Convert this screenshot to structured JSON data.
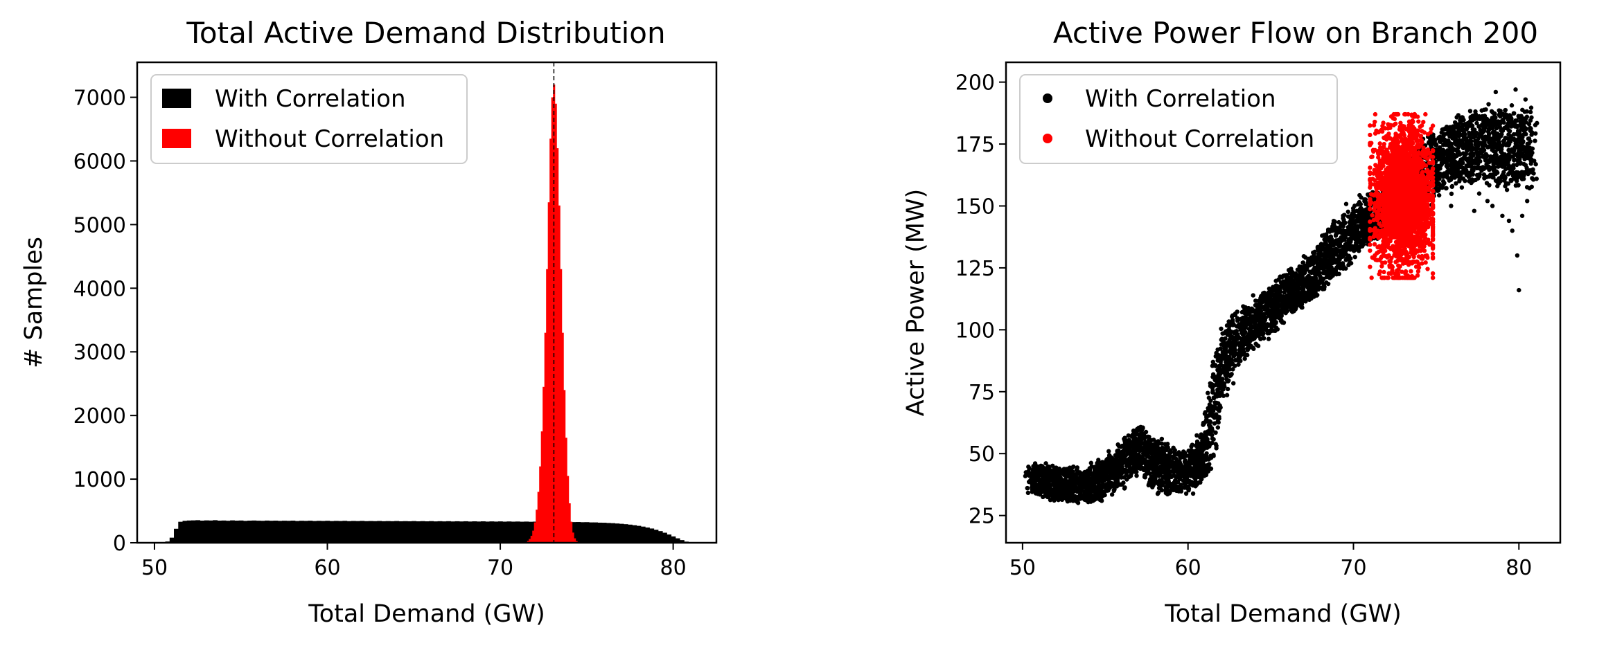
{
  "figure": {
    "colors": {
      "correlated": "#000000",
      "uncorrelated": "#ff0000",
      "reference_line": "#000000"
    }
  },
  "chart_data": [
    {
      "type": "histogram",
      "title": "Total Active Demand Distribution",
      "xlabel": "Total Demand (GW)",
      "ylabel": "# Samples",
      "xlim": [
        49,
        82.5
      ],
      "ylim": [
        0,
        7550
      ],
      "xticks": [
        50,
        60,
        70,
        80
      ],
      "yticks": [
        0,
        1000,
        2000,
        3000,
        4000,
        5000,
        6000,
        7000
      ],
      "reference_line_x": 73.1,
      "legend": {
        "placement": "upper-left",
        "entries": [
          "With Correlation",
          "Without Correlation"
        ]
      },
      "series": [
        {
          "name": "With Correlation",
          "color": "#000000",
          "bin_width": 0.25,
          "bins": [
            [
              50.75,
              20
            ],
            [
              51.0,
              80
            ],
            [
              51.25,
              220
            ],
            [
              51.5,
              330
            ],
            [
              51.75,
              345
            ],
            [
              52.0,
              350
            ],
            [
              52.25,
              352
            ],
            [
              52.5,
              355
            ],
            [
              52.75,
              348
            ],
            [
              53.0,
              352
            ],
            [
              53.25,
              350
            ],
            [
              53.5,
              355
            ],
            [
              53.75,
              348
            ],
            [
              54.0,
              350
            ],
            [
              54.25,
              346
            ],
            [
              54.5,
              352
            ],
            [
              54.75,
              348
            ],
            [
              55.0,
              350
            ],
            [
              55.25,
              344
            ],
            [
              55.5,
              348
            ],
            [
              55.75,
              350
            ],
            [
              56.0,
              347
            ],
            [
              56.25,
              345
            ],
            [
              56.5,
              349
            ],
            [
              56.75,
              346
            ],
            [
              57.0,
              348
            ],
            [
              57.25,
              344
            ],
            [
              57.5,
              347
            ],
            [
              57.75,
              345
            ],
            [
              58.0,
              348
            ],
            [
              58.25,
              342
            ],
            [
              58.5,
              346
            ],
            [
              58.75,
              344
            ],
            [
              59.0,
              347
            ],
            [
              59.25,
              342
            ],
            [
              59.5,
              345
            ],
            [
              59.75,
              343
            ],
            [
              60.0,
              346
            ],
            [
              60.25,
              341
            ],
            [
              60.5,
              344
            ],
            [
              60.75,
              342
            ],
            [
              61.0,
              345
            ],
            [
              61.25,
              340
            ],
            [
              61.5,
              343
            ],
            [
              61.75,
              341
            ],
            [
              62.0,
              344
            ],
            [
              62.25,
              340
            ],
            [
              62.5,
              342
            ],
            [
              62.75,
              340
            ],
            [
              63.0,
              343
            ],
            [
              63.25,
              339
            ],
            [
              63.5,
              341
            ],
            [
              63.75,
              339
            ],
            [
              64.0,
              342
            ],
            [
              64.25,
              338
            ],
            [
              64.5,
              340
            ],
            [
              64.75,
              338
            ],
            [
              65.0,
              341
            ],
            [
              65.25,
              337
            ],
            [
              65.5,
              340
            ],
            [
              65.75,
              337
            ],
            [
              66.0,
              340
            ],
            [
              66.25,
              336
            ],
            [
              66.5,
              339
            ],
            [
              66.75,
              336
            ],
            [
              67.0,
              339
            ],
            [
              67.25,
              335
            ],
            [
              67.5,
              338
            ],
            [
              67.75,
              335
            ],
            [
              68.0,
              338
            ],
            [
              68.25,
              334
            ],
            [
              68.5,
              337
            ],
            [
              68.75,
              334
            ],
            [
              69.0,
              337
            ],
            [
              69.25,
              333
            ],
            [
              69.5,
              336
            ],
            [
              69.75,
              333
            ],
            [
              70.0,
              336
            ],
            [
              70.25,
              332
            ],
            [
              70.5,
              335
            ],
            [
              70.75,
              332
            ],
            [
              71.0,
              334
            ],
            [
              71.25,
              331
            ],
            [
              71.5,
              333
            ],
            [
              71.75,
              330
            ],
            [
              72.0,
              332
            ],
            [
              72.25,
              329
            ],
            [
              72.5,
              331
            ],
            [
              72.75,
              328
            ],
            [
              73.0,
              330
            ],
            [
              73.25,
              327
            ],
            [
              73.5,
              329
            ],
            [
              73.75,
              326
            ],
            [
              74.0,
              328
            ],
            [
              74.25,
              325
            ],
            [
              74.5,
              326
            ],
            [
              74.75,
              323
            ],
            [
              75.0,
              324
            ],
            [
              75.25,
              320
            ],
            [
              75.5,
              320
            ],
            [
              75.75,
              316
            ],
            [
              76.0,
              315
            ],
            [
              76.25,
              311
            ],
            [
              76.5,
              308
            ],
            [
              76.75,
              303
            ],
            [
              77.0,
              298
            ],
            [
              77.25,
              292
            ],
            [
              77.5,
              285
            ],
            [
              77.75,
              276
            ],
            [
              78.0,
              266
            ],
            [
              78.25,
              254
            ],
            [
              78.5,
              240
            ],
            [
              78.75,
              224
            ],
            [
              79.0,
              205
            ],
            [
              79.25,
              183
            ],
            [
              79.5,
              158
            ],
            [
              79.75,
              130
            ],
            [
              80.0,
              100
            ],
            [
              80.25,
              70
            ],
            [
              80.5,
              42
            ],
            [
              80.75,
              18
            ],
            [
              81.0,
              6
            ]
          ]
        },
        {
          "name": "Without Correlation",
          "color": "#ff0000",
          "bin_width": 0.1,
          "bins": [
            [
              71.6,
              30
            ],
            [
              71.7,
              60
            ],
            [
              71.8,
              110
            ],
            [
              71.9,
              190
            ],
            [
              72.0,
              320
            ],
            [
              72.1,
              520
            ],
            [
              72.2,
              800
            ],
            [
              72.3,
              1200
            ],
            [
              72.4,
              1750
            ],
            [
              72.5,
              2450
            ],
            [
              72.6,
              3300
            ],
            [
              72.7,
              4300
            ],
            [
              72.8,
              5350
            ],
            [
              72.9,
              6350
            ],
            [
              73.0,
              7000
            ],
            [
              73.1,
              7200
            ],
            [
              73.2,
              6900
            ],
            [
              73.3,
              6200
            ],
            [
              73.4,
              5300
            ],
            [
              73.5,
              4300
            ],
            [
              73.6,
              3300
            ],
            [
              73.7,
              2400
            ],
            [
              73.8,
              1650
            ],
            [
              73.9,
              1050
            ],
            [
              74.0,
              620
            ],
            [
              74.1,
              330
            ],
            [
              74.2,
              160
            ],
            [
              74.3,
              70
            ],
            [
              74.4,
              28
            ]
          ]
        }
      ]
    },
    {
      "type": "scatter",
      "title": "Active Power Flow on Branch 200",
      "xlabel": "Total Demand (GW)",
      "ylabel": "Active Power (MW)",
      "xlim": [
        49,
        82.5
      ],
      "ylim": [
        14,
        208
      ],
      "xticks": [
        50,
        60,
        70,
        80
      ],
      "yticks": [
        25,
        50,
        75,
        100,
        125,
        150,
        175,
        200
      ],
      "legend": {
        "placement": "upper-left",
        "entries": [
          "With Correlation",
          "Without Correlation"
        ]
      },
      "series": [
        {
          "name": "With Correlation",
          "color": "#000000",
          "trend_x": [
            50.5,
            52,
            54,
            55.5,
            57,
            58,
            59,
            60,
            61,
            61.5,
            62,
            63,
            64,
            65,
            66,
            67,
            68,
            69,
            70,
            71,
            72,
            73,
            74,
            75,
            76,
            77,
            78,
            79,
            80,
            80.8
          ],
          "trend_y": [
            40,
            38,
            37,
            42,
            53,
            46,
            42,
            42,
            50,
            65,
            85,
            97,
            103,
            108,
            115,
            118,
            125,
            133,
            140,
            145,
            148,
            156,
            162,
            167,
            171,
            174,
            175,
            174,
            173,
            172
          ],
          "band_halfwidth": [
            6,
            7,
            7,
            8,
            9,
            10,
            9,
            8,
            9,
            12,
            12,
            10,
            9,
            9,
            9,
            9,
            10,
            11,
            11,
            10,
            9,
            10,
            12,
            13,
            13,
            14,
            15,
            16,
            16,
            16
          ],
          "outliers": [
            [
              77.0,
              160
            ],
            [
              77.6,
              155
            ],
            [
              78.1,
              152
            ],
            [
              78.4,
              150
            ],
            [
              79.0,
              146
            ],
            [
              79.4,
              144
            ],
            [
              79.9,
              130
            ],
            [
              80.0,
              116
            ],
            [
              76.4,
              160
            ],
            [
              75.9,
              150
            ],
            [
              80.2,
              146
            ],
            [
              78.7,
              158
            ],
            [
              79.6,
              140
            ],
            [
              77.3,
              148
            ],
            [
              80.5,
              152
            ],
            [
              79.8,
              197
            ],
            [
              78.6,
              196
            ],
            [
              80.4,
              193
            ]
          ]
        },
        {
          "name": "Without Correlation",
          "color": "#ff0000",
          "center": [
            73.0,
            153
          ],
          "spread_x": 0.85,
          "spread_y": 14,
          "x_range": [
            71.0,
            74.8
          ],
          "y_range": [
            121,
            187
          ]
        }
      ]
    }
  ]
}
